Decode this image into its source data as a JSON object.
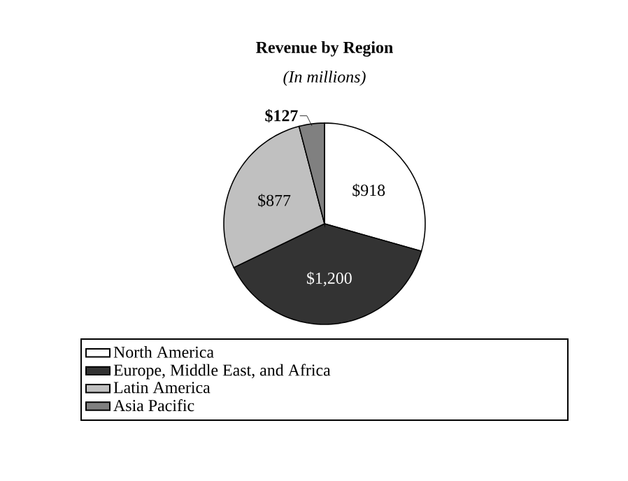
{
  "chart_data": {
    "type": "pie",
    "title": "Revenue by Region",
    "subtitle": "(In millions)",
    "categories": [
      "North America",
      "Europe, Middle East, and Africa",
      "Latin America",
      "Asia Pacific"
    ],
    "values": [
      918,
      1200,
      877,
      127
    ],
    "colors": [
      "#ffffff",
      "#333333",
      "#c0c0c0",
      "#808080"
    ],
    "value_labels": [
      "$918",
      "$1,200",
      "$877",
      "$127"
    ],
    "legend": "bottom"
  }
}
